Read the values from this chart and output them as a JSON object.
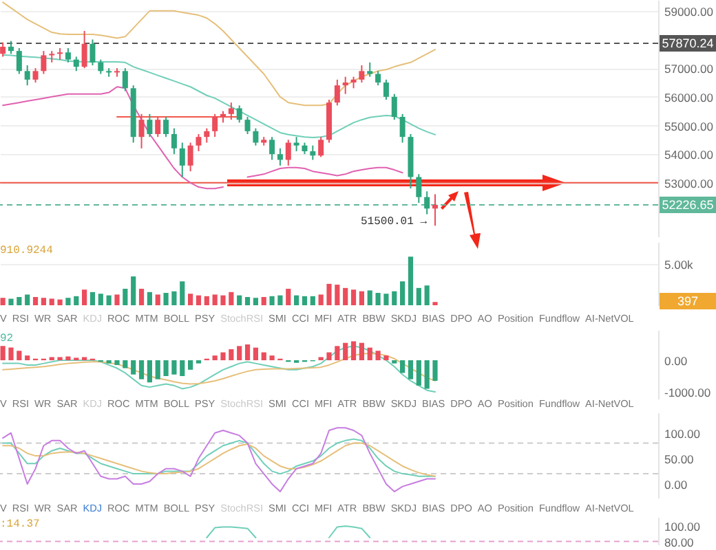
{
  "chart_data": [
    {
      "type": "candlestick",
      "categories": [
        null,
        null,
        null,
        null,
        null,
        null,
        null,
        null,
        null,
        null,
        null,
        null,
        null,
        null,
        null,
        null,
        null,
        null,
        null,
        null,
        null,
        null,
        null,
        null,
        null,
        null,
        null,
        null,
        null,
        null,
        null,
        null,
        null,
        null,
        null,
        null,
        null,
        null,
        null,
        null,
        null,
        null,
        null,
        null,
        null,
        null,
        null,
        null,
        null,
        null,
        null,
        null,
        null,
        null,
        null,
        null,
        null,
        null,
        null,
        null,
        null,
        null,
        null,
        null,
        null,
        null,
        null,
        null,
        null,
        null,
        null,
        null,
        null,
        null,
        null,
        null,
        null,
        null,
        null,
        null,
        null
      ],
      "ohlc": [
        [
          57500,
          57900,
          57400,
          57750
        ],
        [
          57750,
          57950,
          57500,
          57600
        ],
        [
          57600,
          57700,
          56800,
          56900
        ],
        [
          56900,
          57100,
          56400,
          56600
        ],
        [
          56600,
          57000,
          56500,
          56900
        ],
        [
          56900,
          57600,
          56800,
          57450
        ],
        [
          57450,
          57600,
          57200,
          57500
        ],
        [
          57500,
          57700,
          57300,
          57550
        ],
        [
          57550,
          57700,
          57200,
          57300
        ],
        [
          57300,
          57400,
          56900,
          57050
        ],
        [
          57050,
          58300,
          57000,
          57850
        ],
        [
          57850,
          58000,
          57100,
          57200
        ],
        [
          57200,
          57300,
          56800,
          56900
        ],
        [
          56900,
          57000,
          56700,
          56850
        ],
        [
          56850,
          57000,
          56700,
          56900
        ],
        [
          56900,
          57000,
          56200,
          56300
        ],
        [
          56300,
          56400,
          54400,
          54600
        ],
        [
          54600,
          55400,
          54200,
          55200
        ],
        [
          55200,
          55400,
          54600,
          54700
        ],
        [
          54700,
          55300,
          54600,
          55200
        ],
        [
          55200,
          55300,
          54600,
          54700
        ],
        [
          54700,
          54900,
          54000,
          54200
        ],
        [
          54200,
          54400,
          53200,
          53600
        ],
        [
          53600,
          54400,
          53400,
          54300
        ],
        [
          54300,
          54700,
          54100,
          54600
        ],
        [
          54600,
          54900,
          54400,
          54800
        ],
        [
          54800,
          55400,
          54600,
          55300
        ],
        [
          55300,
          55500,
          55100,
          55400
        ],
        [
          55400,
          55800,
          55200,
          55600
        ],
        [
          55600,
          55700,
          55100,
          55200
        ],
        [
          55200,
          55300,
          54700,
          54800
        ],
        [
          54800,
          54900,
          54300,
          54400
        ],
        [
          54400,
          54600,
          54300,
          54500
        ],
        [
          54500,
          54600,
          53800,
          54000
        ],
        [
          54000,
          54200,
          53600,
          53800
        ],
        [
          53800,
          54500,
          53600,
          54400
        ],
        [
          54400,
          54600,
          54100,
          54300
        ],
        [
          54300,
          54400,
          54000,
          54100
        ],
        [
          54100,
          54300,
          53800,
          53950
        ],
        [
          53950,
          54600,
          53900,
          54500
        ],
        [
          54500,
          55900,
          54400,
          55800
        ],
        [
          55800,
          56600,
          55700,
          56400
        ],
        [
          56400,
          56700,
          56100,
          56500
        ],
        [
          56500,
          56700,
          56300,
          56600
        ],
        [
          56600,
          57100,
          56500,
          56900
        ],
        [
          56900,
          57200,
          56700,
          56800
        ],
        [
          56800,
          56900,
          56400,
          56500
        ],
        [
          56500,
          56600,
          55900,
          56000
        ],
        [
          56000,
          56100,
          55200,
          55300
        ],
        [
          55300,
          55400,
          54400,
          54600
        ],
        [
          54600,
          54700,
          52800,
          53200
        ],
        [
          53200,
          53300,
          52300,
          52500
        ],
        [
          52500,
          52700,
          51900,
          52100
        ],
        [
          52100,
          52600,
          51500.01,
          52226.65
        ],
        null,
        null,
        null,
        null,
        null,
        null,
        null,
        null,
        null,
        null,
        null,
        null,
        null,
        null,
        null,
        null,
        null,
        null,
        null,
        null,
        null,
        null,
        null,
        null,
        null,
        null,
        null
      ],
      "colors": [
        "#eb4d5c",
        "#2ea57c",
        "#2ea57c",
        "#2ea57c",
        "#eb4d5c",
        "#eb4d5c",
        "#eb4d5c",
        "#eb4d5c",
        "#2ea57c",
        "#2ea57c",
        "#eb4d5c",
        "#2ea57c",
        "#2ea57c",
        "#2ea57c",
        "#eb4d5c",
        "#2ea57c",
        "#2ea57c",
        "#eb4d5c",
        "#2ea57c",
        "#eb4d5c",
        "#2ea57c",
        "#2ea57c",
        "#2ea57c",
        "#eb4d5c",
        "#eb4d5c",
        "#eb4d5c",
        "#eb4d5c",
        "#eb4d5c",
        "#eb4d5c",
        "#2ea57c",
        "#2ea57c",
        "#2ea57c",
        "#eb4d5c",
        "#2ea57c",
        "#2ea57c",
        "#eb4d5c",
        "#2ea57c",
        "#2ea57c",
        "#2ea57c",
        "#eb4d5c",
        "#eb4d5c",
        "#eb4d5c",
        "#eb4d5c",
        "#eb4d5c",
        "#eb4d5c",
        "#2ea57c",
        "#2ea57c",
        "#2ea57c",
        "#2ea57c",
        "#2ea57c",
        "#2ea57c",
        "#2ea57c",
        "#2ea57c",
        "#eb4d5c",
        null,
        null,
        null,
        null,
        null,
        null,
        null,
        null,
        null,
        null,
        null,
        null,
        null,
        null,
        null,
        null,
        null,
        null,
        null,
        null,
        null,
        null,
        null,
        null,
        null,
        null,
        null
      ],
      "series": [
        {
          "type": "line",
          "color": "#e6bf7a",
          "values": [
            59300,
            59100,
            58900,
            58700,
            58550,
            58400,
            58250,
            58200,
            58180,
            58180,
            58180,
            58180,
            58150,
            58100,
            58050,
            58100,
            58400,
            58700,
            59000,
            59000,
            59000,
            59000,
            58950,
            58900,
            58850,
            58750,
            58550,
            58300,
            58000,
            57700,
            57400,
            57100,
            56800,
            56400,
            56000,
            55800,
            55750,
            55700,
            55700,
            55700,
            55750,
            56100,
            56400,
            56550,
            56700,
            56800,
            56900,
            56950,
            57050,
            57130,
            57200,
            57350,
            57500,
            57650,
            null,
            null,
            null,
            null,
            null,
            null,
            null,
            null,
            null,
            null,
            null,
            null,
            null,
            null,
            null,
            null,
            null,
            null,
            null,
            null,
            null,
            null,
            null,
            null,
            null,
            null,
            null
          ]
        },
        {
          "type": "line",
          "color": "#6fcfb8",
          "values": [
            57460,
            57450,
            57420,
            57400,
            57380,
            57360,
            57330,
            57300,
            57250,
            57230,
            57220,
            57220,
            57220,
            57220,
            57220,
            57200,
            57050,
            56950,
            56850,
            56750,
            56650,
            56550,
            56450,
            56350,
            56200,
            56050,
            55950,
            55800,
            55650,
            55500,
            55350,
            55200,
            55050,
            54900,
            54750,
            54680,
            54640,
            54600,
            54580,
            54600,
            54650,
            54800,
            54950,
            55100,
            55200,
            55280,
            55320,
            55350,
            55330,
            55200,
            55050,
            54900,
            54780,
            54680,
            null,
            null,
            null,
            null,
            null,
            null,
            null,
            null,
            null,
            null,
            null,
            null,
            null,
            null,
            null,
            null,
            null,
            null,
            null,
            null,
            null,
            null,
            null,
            null,
            null,
            null,
            null
          ]
        },
        {
          "type": "line",
          "color": "#e060b0",
          "values": [
            55700,
            55750,
            55800,
            55850,
            55900,
            55950,
            56000,
            56050,
            56100,
            56100,
            56100,
            56100,
            56100,
            56150,
            56350,
            56300,
            55700,
            55200,
            54700,
            54300,
            53900,
            53500,
            53200,
            53000,
            52850,
            52800,
            52800,
            52850,
            null,
            null,
            53200,
            53250,
            53300,
            53400,
            53500,
            53530,
            53530,
            53500,
            53400,
            53350,
            53300,
            53250,
            53300,
            53400,
            53450,
            53500,
            53530,
            53530,
            53450,
            53350,
            null,
            null,
            null,
            null,
            null,
            null,
            null,
            null,
            null,
            null,
            null,
            null,
            null,
            null,
            null,
            null,
            null,
            null,
            null,
            null,
            null,
            null,
            null,
            null,
            null,
            null,
            null,
            null,
            null,
            null,
            null
          ]
        },
        {
          "type": "line",
          "color": "#f2584a",
          "values": [
            null,
            null,
            null,
            null,
            null,
            null,
            null,
            null,
            null,
            null,
            null,
            null,
            null,
            null,
            55300,
            55300,
            55300,
            55300,
            55300,
            55300,
            55300,
            55300,
            55300,
            55300,
            55300,
            55300,
            55300,
            55300,
            55300,
            55300,
            null,
            null,
            null,
            null,
            null,
            null,
            null,
            null,
            null,
            null,
            null,
            null,
            null,
            null,
            null,
            null,
            null,
            null,
            null,
            null,
            null,
            null,
            null,
            null,
            null,
            null,
            null,
            null,
            null,
            null,
            null,
            null,
            null,
            null,
            null,
            null,
            null,
            null,
            null,
            null,
            null,
            null,
            null,
            null,
            null,
            null,
            null,
            null,
            null,
            null,
            null
          ]
        }
      ],
      "ylim": [
        51124,
        59380
      ],
      "yticks": [
        {
          "value": 53000,
          "label": "53000.00"
        },
        {
          "value": 54000,
          "label": "54000.00"
        },
        {
          "value": 55000,
          "label": "55000.00"
        },
        {
          "value": 56000,
          "label": "56000.00"
        },
        {
          "value": 57000,
          "label": "57000.00"
        },
        {
          "value": 59000,
          "label": "59000.00"
        }
      ],
      "grid": "y",
      "ref_lines": [
        {
          "axis": "y",
          "value": 57870.24,
          "label": "57870.24",
          "color": "#555555",
          "line_style": "dashed"
        },
        {
          "axis": "y",
          "value": 52226.65,
          "label": "52226.65",
          "color": "#5fb89a",
          "line_style": "dashed"
        },
        {
          "axis": "y",
          "value": 53000,
          "color": "#f2584a",
          "line_style": "solid"
        }
      ],
      "annotations": [
        "51500.01 →"
      ]
    },
    {
      "type": "bar",
      "categories": [
        null,
        null,
        null,
        null,
        null,
        null,
        null,
        null,
        null,
        null,
        null,
        null,
        null,
        null,
        null,
        null,
        null,
        null,
        null,
        null,
        null,
        null,
        null,
        null,
        null,
        null,
        null,
        null,
        null,
        null,
        null,
        null,
        null,
        null,
        null,
        null,
        null,
        null,
        null,
        null,
        null,
        null,
        null,
        null,
        null,
        null,
        null,
        null,
        null,
        null,
        null,
        null,
        null,
        null,
        null,
        null,
        null,
        null,
        null,
        null,
        null,
        null,
        null,
        null,
        null,
        null,
        null,
        null,
        null,
        null,
        null,
        null,
        null,
        null,
        null,
        null,
        null,
        null,
        null,
        null,
        null
      ],
      "values": [
        900,
        800,
        1000,
        1300,
        1000,
        900,
        800,
        700,
        900,
        1100,
        1900,
        1600,
        1400,
        1200,
        1300,
        2000,
        3500,
        2000,
        1600,
        1300,
        1500,
        1700,
        2900,
        1400,
        1200,
        1100,
        1300,
        1200,
        1600,
        1200,
        1000,
        900,
        1000,
        1100,
        1200,
        2000,
        1200,
        1100,
        1100,
        1300,
        2600,
        2500,
        2100,
        1900,
        1700,
        1800,
        1500,
        1400,
        1700,
        2900,
        5900,
        2100,
        2400,
        397,
        null,
        null,
        null,
        null,
        null,
        null,
        null,
        null,
        null,
        null,
        null,
        null,
        null,
        null,
        null,
        null,
        null,
        null,
        null,
        null,
        null,
        null,
        null,
        null,
        null,
        null,
        null
      ],
      "colors": [
        "#eb4d5c",
        "#2ea57c",
        "#2ea57c",
        "#2ea57c",
        "#eb4d5c",
        "#eb4d5c",
        "#eb4d5c",
        "#eb4d5c",
        "#2ea57c",
        "#2ea57c",
        "#eb4d5c",
        "#2ea57c",
        "#2ea57c",
        "#2ea57c",
        "#eb4d5c",
        "#2ea57c",
        "#2ea57c",
        "#eb4d5c",
        "#2ea57c",
        "#eb4d5c",
        "#2ea57c",
        "#2ea57c",
        "#2ea57c",
        "#eb4d5c",
        "#eb4d5c",
        "#eb4d5c",
        "#eb4d5c",
        "#eb4d5c",
        "#eb4d5c",
        "#2ea57c",
        "#2ea57c",
        "#2ea57c",
        "#eb4d5c",
        "#2ea57c",
        "#2ea57c",
        "#eb4d5c",
        "#2ea57c",
        "#2ea57c",
        "#2ea57c",
        "#eb4d5c",
        "#eb4d5c",
        "#eb4d5c",
        "#eb4d5c",
        "#eb4d5c",
        "#eb4d5c",
        "#2ea57c",
        "#2ea57c",
        "#2ea57c",
        "#2ea57c",
        "#2ea57c",
        "#2ea57c",
        "#2ea57c",
        "#2ea57c",
        "#eb4d5c",
        null,
        null,
        null,
        null,
        null,
        null,
        null,
        null,
        null,
        null,
        null,
        null,
        null,
        null,
        null,
        null,
        null,
        null,
        null,
        null,
        null,
        null,
        null,
        null,
        null,
        null,
        null
      ],
      "ylim": [
        0,
        7680
      ],
      "yticks": [
        {
          "value": 5000,
          "label": "5.00k"
        }
      ],
      "grid": "y",
      "annotations": [
        "910.9244",
        "397",
        "V RSI WR SAR KDJ ROC MTM BOLL PSY StochRSI SMI CCI MFI ATR BBW SKDJ BIAS DPO AO Position Fundflow AI-NetVOL"
      ]
    },
    {
      "type": "bar",
      "categories": [
        null,
        null,
        null,
        null,
        null,
        null,
        null,
        null,
        null,
        null,
        null,
        null,
        null,
        null,
        null,
        null,
        null,
        null,
        null,
        null,
        null,
        null,
        null,
        null,
        null,
        null,
        null,
        null,
        null,
        null,
        null,
        null,
        null,
        null,
        null,
        null,
        null,
        null,
        null,
        null,
        null,
        null,
        null,
        null,
        null,
        null,
        null,
        null,
        null,
        null,
        null,
        null,
        null,
        null,
        null,
        null,
        null,
        null,
        null,
        null,
        null,
        null,
        null,
        null,
        null,
        null,
        null,
        null,
        null,
        null,
        null,
        null,
        null,
        null,
        null,
        null,
        null,
        null,
        null,
        null,
        null
      ],
      "values": [
        450,
        400,
        300,
        150,
        50,
        50,
        100,
        100,
        120,
        80,
        100,
        50,
        -50,
        -100,
        -150,
        -250,
        -450,
        -600,
        -700,
        -600,
        -500,
        -450,
        -500,
        -300,
        -100,
        50,
        150,
        250,
        350,
        450,
        500,
        400,
        250,
        150,
        50,
        -50,
        -80,
        -50,
        -30,
        100,
        250,
        450,
        550,
        600,
        550,
        400,
        300,
        150,
        -100,
        -400,
        -600,
        -800,
        -900,
        -650,
        null,
        null,
        null,
        null,
        null,
        null,
        null,
        null,
        null,
        null,
        null,
        null,
        null,
        null,
        null,
        null,
        null,
        null,
        null,
        null,
        null,
        null,
        null,
        null,
        null,
        null,
        null
      ],
      "colors": [
        "#eb4d5c",
        "#eb4d5c",
        "#eb4d5c",
        "#eb4d5c",
        "#eb4d5c",
        "#eb4d5c",
        "#eb4d5c",
        "#eb4d5c",
        "#eb4d5c",
        "#eb4d5c",
        "#eb4d5c",
        "#eb4d5c",
        "#2ea57c",
        "#2ea57c",
        "#2ea57c",
        "#2ea57c",
        "#2ea57c",
        "#2ea57c",
        "#2ea57c",
        "#2ea57c",
        "#2ea57c",
        "#2ea57c",
        "#2ea57c",
        "#2ea57c",
        "#2ea57c",
        "#eb4d5c",
        "#eb4d5c",
        "#eb4d5c",
        "#eb4d5c",
        "#eb4d5c",
        "#eb4d5c",
        "#eb4d5c",
        "#eb4d5c",
        "#eb4d5c",
        "#eb4d5c",
        "#2ea57c",
        "#2ea57c",
        "#2ea57c",
        "#2ea57c",
        "#eb4d5c",
        "#eb4d5c",
        "#eb4d5c",
        "#eb4d5c",
        "#eb4d5c",
        "#eb4d5c",
        "#eb4d5c",
        "#eb4d5c",
        "#eb4d5c",
        "#2ea57c",
        "#2ea57c",
        "#2ea57c",
        "#2ea57c",
        "#2ea57c",
        "#2ea57c",
        null,
        null,
        null,
        null,
        null,
        null,
        null,
        null,
        null,
        null,
        null,
        null,
        null,
        null,
        null,
        null,
        null,
        null,
        null,
        null,
        null,
        null,
        null,
        null,
        null,
        null,
        null
      ],
      "series": [
        {
          "type": "line",
          "color": "#6fcfb8",
          "values": [
            -100,
            -100,
            -100,
            -150,
            -150,
            -100,
            -50,
            0,
            0,
            0,
            0,
            0,
            -50,
            -150,
            -250,
            -400,
            -600,
            -800,
            -850,
            -800,
            -750,
            -800,
            -900,
            -850,
            -750,
            -600,
            -450,
            -300,
            -200,
            -100,
            -50,
            -100,
            -150,
            -200,
            -250,
            -300,
            -300,
            -250,
            -200,
            -100,
            100,
            300,
            400,
            450,
            400,
            300,
            150,
            0,
            -200,
            -450,
            -650,
            -800,
            -950,
            -1000,
            null,
            null,
            null,
            null,
            null,
            null,
            null,
            null,
            null,
            null,
            null,
            null,
            null,
            null,
            null,
            null,
            null,
            null,
            null,
            null,
            null,
            null,
            null,
            null,
            null,
            null,
            null
          ]
        },
        {
          "type": "line",
          "color": "#e6bf7a",
          "values": [
            -300,
            -280,
            -260,
            -240,
            -220,
            -200,
            -170,
            -130,
            -100,
            -80,
            -60,
            -50,
            -50,
            -80,
            -120,
            -200,
            -300,
            -400,
            -500,
            -570,
            -620,
            -680,
            -730,
            -750,
            -740,
            -700,
            -650,
            -580,
            -500,
            -420,
            -350,
            -300,
            -280,
            -270,
            -270,
            -270,
            -260,
            -250,
            -240,
            -220,
            -150,
            -50,
            50,
            150,
            200,
            220,
            200,
            150,
            50,
            -100,
            -250,
            -400,
            -550,
            -650,
            null,
            null,
            null,
            null,
            null,
            null,
            null,
            null,
            null,
            null,
            null,
            null,
            null,
            null,
            null,
            null,
            null,
            null,
            null,
            null,
            null,
            null,
            null,
            null,
            null,
            null,
            null
          ]
        }
      ],
      "ylim": [
        -1217,
        957
      ],
      "yticks": [
        {
          "value": 0,
          "label": "0.00"
        },
        {
          "value": -1000,
          "label": "-1000.00"
        }
      ],
      "annotations": [
        "92",
        "V RSI WR SAR KDJ ROC MTM BOLL PSY StochRSI SMI CCI MFI ATR BBW SKDJ BIAS DPO AO Position Fundflow AI-NetVOL"
      ]
    },
    {
      "type": "line",
      "categories": [
        null,
        null,
        null,
        null,
        null,
        null,
        null,
        null,
        null,
        null,
        null,
        null,
        null,
        null,
        null,
        null,
        null,
        null,
        null,
        null,
        null,
        null,
        null,
        null,
        null,
        null,
        null,
        null,
        null,
        null,
        null,
        null,
        null,
        null,
        null,
        null,
        null,
        null,
        null,
        null,
        null,
        null,
        null,
        null,
        null,
        null,
        null,
        null,
        null,
        null,
        null,
        null,
        null,
        null,
        null,
        null,
        null,
        null,
        null,
        null,
        null,
        null,
        null,
        null,
        null,
        null,
        null,
        null,
        null,
        null,
        null,
        null,
        null,
        null,
        null,
        null,
        null,
        null,
        null,
        null,
        null
      ],
      "series": [
        {
          "color": "#6fcfb8",
          "values": [
            80,
            80,
            60,
            40,
            40,
            55,
            65,
            70,
            65,
            60,
            60,
            50,
            40,
            35,
            30,
            25,
            20,
            20,
            20,
            20,
            25,
            25,
            25,
            25,
            40,
            55,
            65,
            75,
            80,
            85,
            80,
            60,
            40,
            25,
            20,
            25,
            35,
            40,
            45,
            55,
            70,
            80,
            85,
            88,
            85,
            70,
            50,
            35,
            25,
            20,
            18,
            15,
            15,
            15,
            null,
            null,
            null,
            null,
            null,
            null,
            null,
            null,
            null,
            null,
            null,
            null,
            null,
            null,
            null,
            null,
            null,
            null,
            null,
            null,
            null,
            null,
            null,
            null,
            null,
            null,
            null
          ]
        },
        {
          "color": "#e6bf7a",
          "values": [
            75,
            75,
            70,
            60,
            55,
            55,
            60,
            62,
            63,
            62,
            60,
            55,
            50,
            45,
            40,
            35,
            30,
            25,
            22,
            20,
            20,
            22,
            23,
            25,
            30,
            40,
            50,
            60,
            68,
            75,
            78,
            70,
            55,
            45,
            35,
            30,
            30,
            33,
            38,
            45,
            55,
            65,
            75,
            80,
            80,
            75,
            65,
            55,
            45,
            35,
            28,
            22,
            18,
            15,
            null,
            null,
            null,
            null,
            null,
            null,
            null,
            null,
            null,
            null,
            null,
            null,
            null,
            null,
            null,
            null,
            null,
            null,
            null,
            null,
            null,
            null,
            null,
            null,
            null,
            null,
            null
          ]
        },
        {
          "color": "#c77de0",
          "values": [
            90,
            100,
            50,
            0,
            30,
            75,
            85,
            85,
            70,
            60,
            65,
            40,
            15,
            10,
            10,
            15,
            0,
            0,
            5,
            20,
            30,
            30,
            25,
            15,
            50,
            75,
            100,
            105,
            100,
            95,
            80,
            40,
            20,
            0,
            -15,
            10,
            30,
            35,
            40,
            60,
            105,
            110,
            110,
            105,
            95,
            60,
            30,
            0,
            -15,
            -5,
            0,
            5,
            10,
            10,
            null,
            null,
            null,
            null,
            null,
            null,
            null,
            null,
            null,
            null,
            null,
            null,
            null,
            null,
            null,
            null,
            null,
            null,
            null,
            null,
            null,
            null,
            null,
            null,
            null,
            null,
            null
          ]
        }
      ],
      "ylim": [
        -27,
        140
      ],
      "yticks": [
        {
          "value": 0,
          "label": "0.00"
        },
        {
          "value": 50,
          "label": "50.00"
        },
        {
          "value": 100,
          "label": "100.00"
        }
      ],
      "ref_lines": [
        {
          "axis": "y",
          "value": 80,
          "color": "#cccccc",
          "line_style": "dashed"
        },
        {
          "axis": "y",
          "value": 20,
          "color": "#cccccc",
          "line_style": "dashed"
        }
      ],
      "annotations": [
        "V RSI WR SAR KDJ ROC MTM BOLL PSY StochRSI SMI CCI MFI ATR BBW SKDJ BIAS DPO AO Position Fundflow AI-NetVOL"
      ]
    },
    {
      "type": "line",
      "categories": [
        null,
        null,
        null,
        null,
        null,
        null,
        null,
        null,
        null,
        null,
        null,
        null,
        null,
        null,
        null,
        null,
        null,
        null,
        null,
        null,
        null,
        null,
        null,
        null,
        null,
        null,
        null,
        null,
        null,
        null,
        null,
        null,
        null,
        null,
        null,
        null,
        null,
        null,
        null,
        null,
        null,
        null,
        null,
        null,
        null,
        null,
        null,
        null,
        null,
        null,
        null,
        null,
        null,
        null,
        null,
        null,
        null,
        null,
        null,
        null,
        null,
        null,
        null,
        null,
        null,
        null,
        null,
        null,
        null,
        null,
        null,
        null,
        null,
        null,
        null,
        null,
        null,
        null,
        null,
        null,
        null
      ],
      "series": [
        {
          "color": "#6fcfb8",
          "values": [
            null,
            null,
            null,
            null,
            null,
            null,
            null,
            null,
            null,
            null,
            null,
            null,
            null,
            null,
            null,
            null,
            null,
            null,
            null,
            null,
            null,
            null,
            null,
            null,
            null,
            85,
            98,
            99,
            99,
            98,
            97,
            85,
            null,
            null,
            null,
            null,
            null,
            null,
            null,
            null,
            85,
            99,
            100,
            99,
            97,
            85,
            null,
            null,
            null,
            null,
            null,
            null,
            null,
            null,
            null,
            null,
            null,
            null,
            null,
            null,
            null,
            null,
            null,
            null,
            null,
            null,
            null,
            null,
            null,
            null,
            null,
            null,
            null,
            null,
            null,
            null,
            null,
            null,
            null,
            null,
            null
          ]
        }
      ],
      "ylim": [
        76,
        112
      ],
      "yticks": [
        {
          "value": 80,
          "label": "80.00"
        },
        {
          "value": 100,
          "label": "100.00"
        }
      ],
      "ref_lines": [
        {
          "axis": "y",
          "value": 80,
          "color": "#e6a0d0",
          "line_style": "dashed"
        }
      ],
      "annotations": [
        ":14.37"
      ]
    }
  ]
}
